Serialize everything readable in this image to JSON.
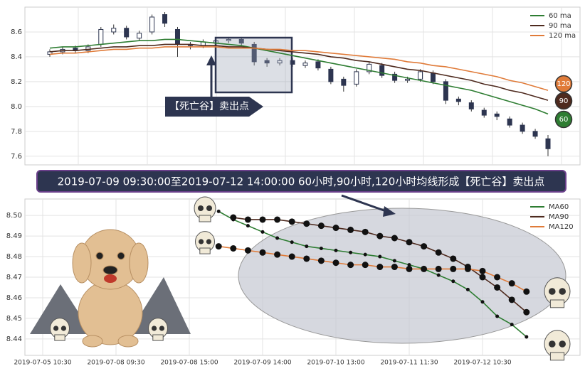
{
  "charts": [
    {
      "type": "candlestick",
      "ylim": [
        7.53,
        8.8
      ],
      "yticks": [
        {
          "value": 7.6,
          "label": "7.6"
        },
        {
          "value": 7.8,
          "label": "7.8"
        },
        {
          "value": 8.0,
          "label": "8.0"
        },
        {
          "value": 8.2,
          "label": "8.2"
        },
        {
          "value": 8.4,
          "label": "8.4"
        },
        {
          "value": 8.6,
          "label": "8.6"
        }
      ],
      "open": [
        8.42,
        8.44,
        8.47,
        8.45,
        8.5,
        8.6,
        8.63,
        8.55,
        8.6,
        8.74,
        8.62,
        8.5,
        8.49,
        8.51,
        8.53,
        8.54,
        8.5,
        8.37,
        8.35,
        8.37,
        8.33,
        8.36,
        8.3,
        8.22,
        8.18,
        8.28,
        8.33,
        8.26,
        8.21,
        8.22,
        8.27,
        8.2,
        8.06,
        8.03,
        7.97,
        7.94,
        7.9,
        7.85,
        7.8,
        7.74
      ],
      "high": [
        8.46,
        8.48,
        8.49,
        8.5,
        8.64,
        8.66,
        8.65,
        8.61,
        8.74,
        8.76,
        8.64,
        8.52,
        8.54,
        8.55,
        8.56,
        8.56,
        8.52,
        8.39,
        8.39,
        8.39,
        8.37,
        8.38,
        8.32,
        8.24,
        8.3,
        8.36,
        8.35,
        8.28,
        8.24,
        8.3,
        8.29,
        8.22,
        8.08,
        8.05,
        7.99,
        7.96,
        7.92,
        7.87,
        7.82,
        7.77
      ],
      "low": [
        8.4,
        8.42,
        8.43,
        8.43,
        8.48,
        8.58,
        8.54,
        8.53,
        8.58,
        8.64,
        8.4,
        8.46,
        8.47,
        8.49,
        8.51,
        8.49,
        8.33,
        8.32,
        8.33,
        8.32,
        8.31,
        8.29,
        8.18,
        8.12,
        8.16,
        8.26,
        8.23,
        8.19,
        8.19,
        8.2,
        8.18,
        8.02,
        8.01,
        7.96,
        7.91,
        7.89,
        7.83,
        7.78,
        7.74,
        7.6
      ],
      "close": [
        8.44,
        8.46,
        8.45,
        8.48,
        8.62,
        8.63,
        8.56,
        8.59,
        8.72,
        8.67,
        8.5,
        8.49,
        8.52,
        8.53,
        8.54,
        8.51,
        8.36,
        8.35,
        8.37,
        8.34,
        8.35,
        8.31,
        8.2,
        8.17,
        8.28,
        8.34,
        8.25,
        8.21,
        8.22,
        8.28,
        8.2,
        8.05,
        8.04,
        7.98,
        7.93,
        7.92,
        7.85,
        7.8,
        7.76,
        7.66
      ],
      "series": [
        {
          "name": "60 ma",
          "label": "60",
          "color": "#2e7d32",
          "values": [
            8.47,
            8.48,
            8.48,
            8.49,
            8.5,
            8.51,
            8.52,
            8.53,
            8.53,
            8.54,
            8.54,
            8.53,
            8.52,
            8.51,
            8.5,
            8.49,
            8.47,
            8.45,
            8.43,
            8.41,
            8.39,
            8.37,
            8.35,
            8.33,
            8.31,
            8.29,
            8.27,
            8.25,
            8.23,
            8.21,
            8.19,
            8.17,
            8.15,
            8.13,
            8.1,
            8.07,
            8.04,
            8.01,
            7.98,
            7.94
          ]
        },
        {
          "name": "90 ma",
          "label": "90",
          "color": "#4e2a1e",
          "values": [
            8.44,
            8.45,
            8.45,
            8.46,
            8.47,
            8.48,
            8.48,
            8.49,
            8.49,
            8.5,
            8.5,
            8.5,
            8.49,
            8.49,
            8.48,
            8.48,
            8.47,
            8.46,
            8.45,
            8.44,
            8.43,
            8.42,
            8.4,
            8.39,
            8.37,
            8.36,
            8.34,
            8.32,
            8.3,
            8.29,
            8.27,
            8.25,
            8.23,
            8.21,
            8.18,
            8.16,
            8.13,
            8.11,
            8.08,
            8.05
          ]
        },
        {
          "name": "120 ma",
          "label": "120",
          "color": "#e07b39",
          "values": [
            8.42,
            8.43,
            8.43,
            8.44,
            8.45,
            8.46,
            8.46,
            8.47,
            8.47,
            8.48,
            8.48,
            8.48,
            8.48,
            8.48,
            8.47,
            8.47,
            8.47,
            8.46,
            8.46,
            8.45,
            8.45,
            8.44,
            8.43,
            8.42,
            8.41,
            8.4,
            8.39,
            8.38,
            8.36,
            8.35,
            8.33,
            8.32,
            8.3,
            8.28,
            8.26,
            8.24,
            8.21,
            8.19,
            8.16,
            8.13
          ]
        }
      ],
      "annotation": "【死亡谷】卖出点"
    },
    {
      "type": "line",
      "banner": "2019-07-09 09:30:00至2019-07-12 14:00:00 60小时,90小时,120小时均线形成【死亡谷】卖出点",
      "categories": [
        "2019-07-05 10:30",
        null,
        null,
        null,
        null,
        "2019-07-08 09:30",
        null,
        null,
        null,
        null,
        "2019-07-08 15:00",
        null,
        null,
        null,
        null,
        "2019-07-09 14:00",
        null,
        null,
        null,
        null,
        "2019-07-10 13:00",
        null,
        null,
        null,
        null,
        "2019-07-11 11:30",
        null,
        null,
        null,
        null,
        "2019-07-12 10:30",
        null,
        null,
        null
      ],
      "ylim": [
        8.432,
        8.508
      ],
      "yticks": [
        {
          "value": 8.44,
          "label": "8.44"
        },
        {
          "value": 8.45,
          "label": "8.45"
        },
        {
          "value": 8.46,
          "label": "8.46"
        },
        {
          "value": 8.47,
          "label": "8.47"
        },
        {
          "value": 8.48,
          "label": "8.48"
        },
        {
          "value": 8.49,
          "label": "8.49"
        },
        {
          "value": 8.5,
          "label": "8.50"
        }
      ],
      "series": [
        {
          "name": "MA60",
          "color": "#2e7d32",
          "values": [
            null,
            null,
            null,
            null,
            null,
            null,
            null,
            null,
            null,
            null,
            null,
            null,
            8.502,
            8.498,
            8.495,
            8.492,
            8.489,
            8.487,
            8.485,
            8.484,
            8.483,
            8.482,
            8.481,
            8.48,
            8.478,
            8.476,
            8.474,
            8.471,
            8.468,
            8.464,
            8.458,
            8.451,
            8.447,
            8.441
          ]
        },
        {
          "name": "MA90",
          "color": "#4e2a1e",
          "values": [
            null,
            null,
            null,
            null,
            null,
            null,
            null,
            null,
            null,
            null,
            null,
            null,
            null,
            8.499,
            8.498,
            8.498,
            8.498,
            8.497,
            8.496,
            8.495,
            8.494,
            8.493,
            8.492,
            8.49,
            8.489,
            8.487,
            8.485,
            8.482,
            8.479,
            8.475,
            8.47,
            8.465,
            8.459,
            8.453
          ]
        },
        {
          "name": "MA120",
          "color": "#e07b39",
          "values": [
            null,
            null,
            null,
            null,
            null,
            null,
            null,
            null,
            null,
            null,
            null,
            null,
            8.485,
            8.484,
            8.483,
            8.482,
            8.481,
            8.48,
            8.479,
            8.478,
            8.477,
            8.476,
            8.476,
            8.475,
            8.475,
            8.474,
            8.474,
            8.474,
            8.474,
            8.474,
            8.473,
            8.47,
            8.467,
            8.463
          ]
        }
      ]
    }
  ]
}
